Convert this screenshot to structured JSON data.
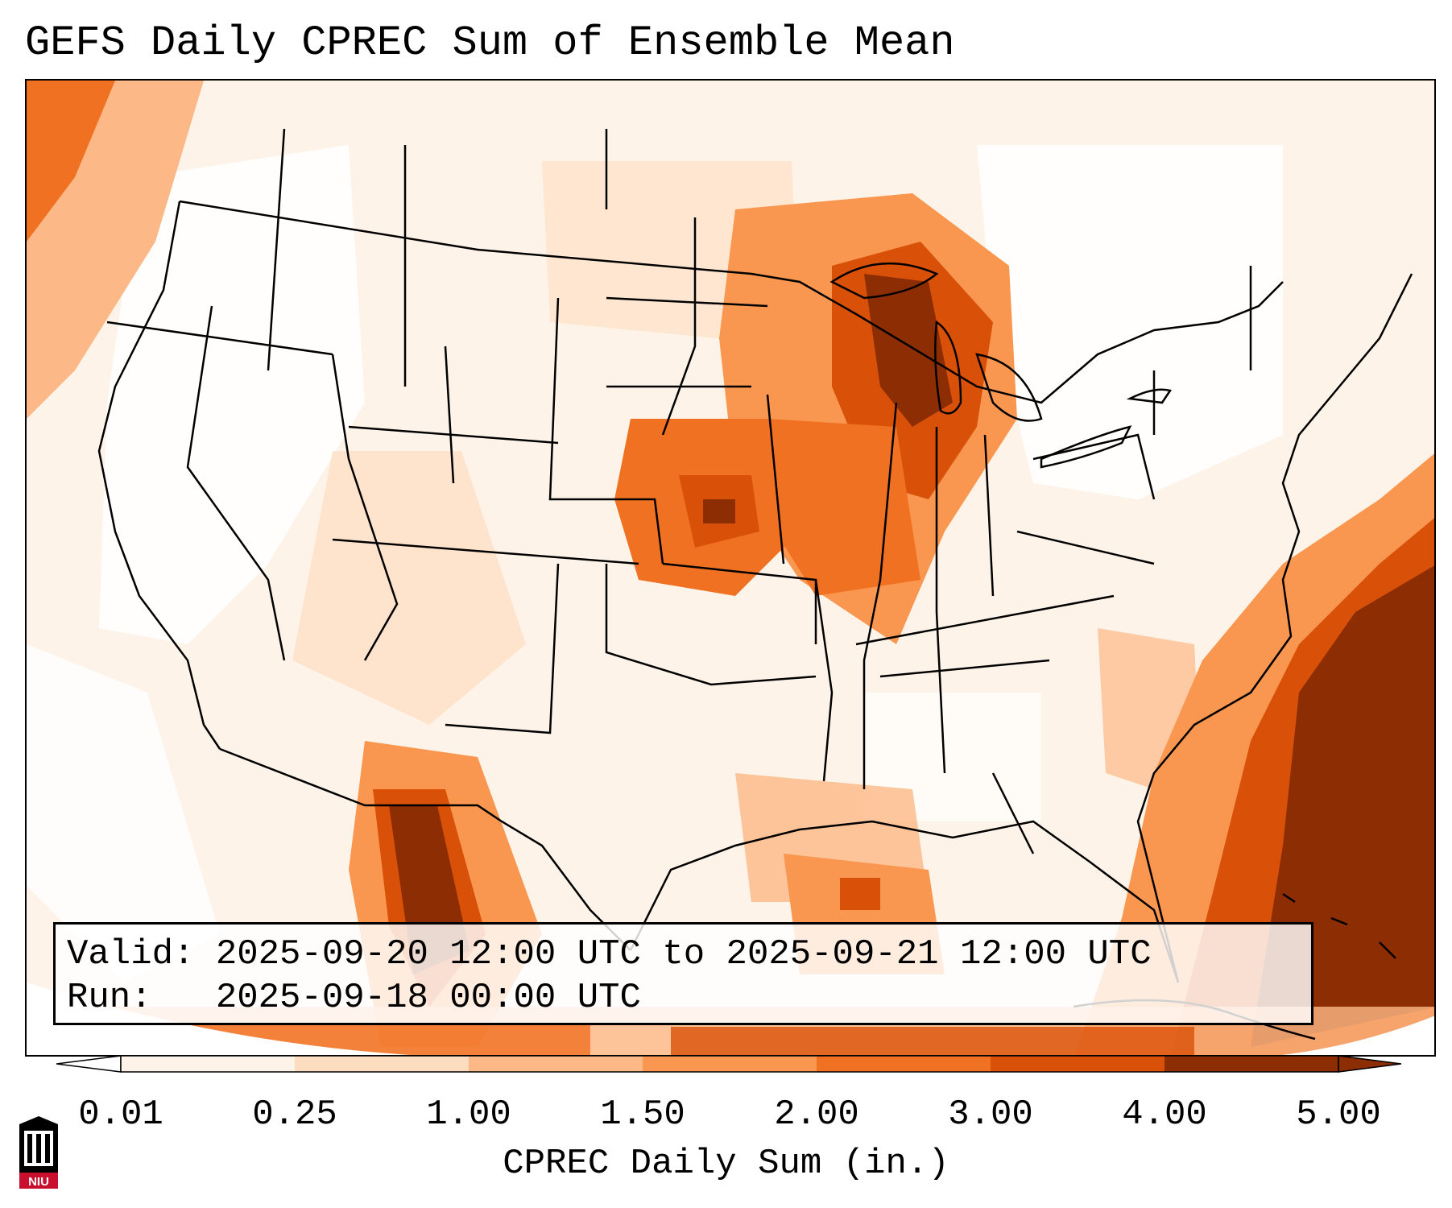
{
  "title": "GEFS Daily CPREC Sum of Ensemble Mean",
  "info": {
    "valid_line": "Valid: 2025-09-20 12:00 UTC to 2025-09-21 12:00 UTC",
    "run_line": "Run:   2025-09-18 00:00 UTC"
  },
  "colorbar": {
    "label": "CPREC Daily Sum (in.)",
    "ticks": [
      "0.01",
      "0.25",
      "1.00",
      "1.50",
      "2.00",
      "3.00",
      "4.00",
      "5.00"
    ],
    "colors": [
      "#fef3e8",
      "#fdddc0",
      "#fcb886",
      "#f99750",
      "#f07121",
      "#d95008",
      "#8c2d04"
    ]
  },
  "logo": {
    "text": "NIU",
    "color": "#c8102e"
  }
}
